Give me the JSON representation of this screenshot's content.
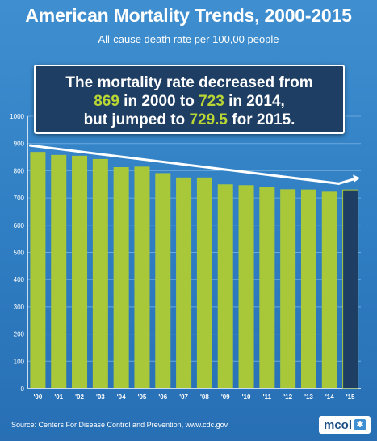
{
  "header": {
    "title": "American Mortality Trends, 2000-2015",
    "subtitle": "All-cause death rate per 100,00 people"
  },
  "callout": {
    "line1": "The mortality rate decreased from",
    "value_2000": "869",
    "text_mid": " in 2000 to ",
    "value_2014": "723",
    "text_end1": " in 2014,",
    "text_pre2015": "but jumped to ",
    "value_2015": "729.5",
    "text_end2": " for 2015."
  },
  "chart_data": {
    "type": "bar",
    "categories": [
      "'00",
      "'01",
      "'02",
      "'03",
      "'04",
      "'05",
      "'06",
      "'07",
      "'08",
      "'09",
      "'10",
      "'11",
      "'12",
      "'13",
      "'14",
      "'15"
    ],
    "values": [
      869,
      858,
      855,
      843,
      813,
      815,
      791,
      775,
      775,
      750,
      747,
      741,
      732,
      731,
      723,
      729.5
    ],
    "ylim": [
      0,
      1000
    ],
    "yticks": [
      0,
      100,
      200,
      300,
      400,
      500,
      600,
      700,
      800,
      900,
      1000
    ],
    "grid": true,
    "trend_line": {
      "from": 869,
      "to": 723
    },
    "colors": {
      "bar": "#a8c83a",
      "bar_highlight": "#1f3e63",
      "trend": "#ffffff",
      "grid": "#6aa8db"
    }
  },
  "footer": {
    "source": "Source:  Centers For Disease Control and Prevention, www.cdc.gov",
    "logo_text": "mcol",
    "logo_icon": "sparkle-icon"
  }
}
